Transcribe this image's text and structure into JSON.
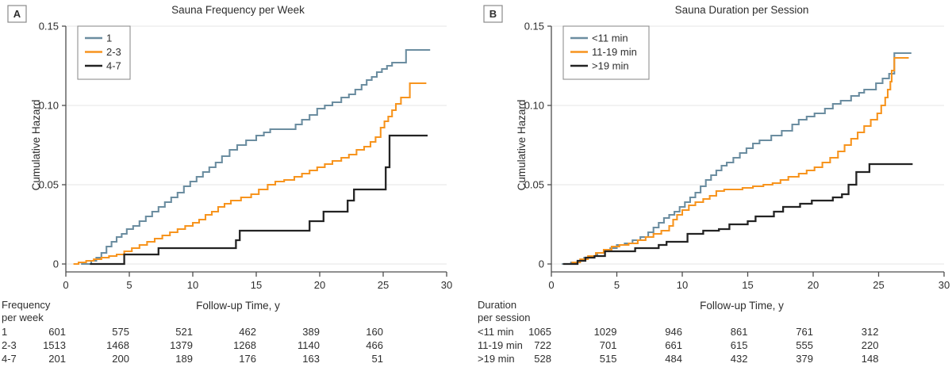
{
  "colors": {
    "blue": "#6b8da0",
    "orange": "#f7941e",
    "black": "#232323",
    "grid": "#e4e4e4",
    "axis": "#4d4d4d",
    "text": "#2e2e2e",
    "legend_border": "#909090",
    "panel_label_border": "#8a8a8a",
    "background": "#ffffff"
  },
  "chart_data": [
    {
      "type": "line",
      "subtype": "cumulative-hazard-step",
      "panel_label": "A",
      "title": "Sauna Frequency per Week",
      "xlabel": "Follow-up Time, y",
      "ylabel": "Cumulative Hazard",
      "xlim": [
        0,
        30
      ],
      "ylim": [
        0,
        0.15
      ],
      "xticks": [
        "0",
        "5",
        "10",
        "15",
        "20",
        "25",
        "30"
      ],
      "ytick_values": [
        0,
        0.05,
        0.1,
        0.15
      ],
      "ytick_labels": [
        "0",
        "0.05",
        "0.10",
        "0.15"
      ],
      "grid": "horizontal",
      "legend_position": "top-left-inside",
      "series": [
        {
          "name": "1",
          "color_key": "blue",
          "x_start": 1.2,
          "x_end": 28.7,
          "points": [
            [
              2.0,
              0.002
            ],
            [
              2.4,
              0.004
            ],
            [
              2.8,
              0.007
            ],
            [
              3.2,
              0.011
            ],
            [
              3.6,
              0.014
            ],
            [
              4.0,
              0.017
            ],
            [
              4.4,
              0.019
            ],
            [
              4.8,
              0.022
            ],
            [
              5.3,
              0.024
            ],
            [
              5.8,
              0.027
            ],
            [
              6.3,
              0.03
            ],
            [
              6.8,
              0.033
            ],
            [
              7.3,
              0.036
            ],
            [
              7.8,
              0.039
            ],
            [
              8.3,
              0.042
            ],
            [
              8.8,
              0.045
            ],
            [
              9.3,
              0.049
            ],
            [
              9.8,
              0.052
            ],
            [
              10.3,
              0.055
            ],
            [
              10.8,
              0.058
            ],
            [
              11.3,
              0.061
            ],
            [
              11.8,
              0.064
            ],
            [
              12.3,
              0.068
            ],
            [
              12.9,
              0.072
            ],
            [
              13.5,
              0.075
            ],
            [
              14.2,
              0.078
            ],
            [
              15.0,
              0.081
            ],
            [
              15.6,
              0.083
            ],
            [
              16.1,
              0.085
            ],
            [
              18.1,
              0.088
            ],
            [
              18.6,
              0.091
            ],
            [
              19.2,
              0.094
            ],
            [
              19.8,
              0.098
            ],
            [
              20.4,
              0.1
            ],
            [
              21.0,
              0.102
            ],
            [
              21.7,
              0.105
            ],
            [
              22.3,
              0.107
            ],
            [
              22.8,
              0.11
            ],
            [
              23.3,
              0.113
            ],
            [
              23.7,
              0.116
            ],
            [
              24.1,
              0.118
            ],
            [
              24.5,
              0.121
            ],
            [
              24.9,
              0.123
            ],
            [
              25.3,
              0.125
            ],
            [
              25.7,
              0.127
            ],
            [
              26.8,
              0.135
            ]
          ]
        },
        {
          "name": "2-3",
          "color_key": "orange",
          "x_start": 0.6,
          "x_end": 28.4,
          "points": [
            [
              1.0,
              0.001
            ],
            [
              1.6,
              0.002
            ],
            [
              2.2,
              0.003
            ],
            [
              2.8,
              0.004
            ],
            [
              3.4,
              0.005
            ],
            [
              4.0,
              0.006
            ],
            [
              4.6,
              0.008
            ],
            [
              5.2,
              0.01
            ],
            [
              5.8,
              0.012
            ],
            [
              6.4,
              0.014
            ],
            [
              7.0,
              0.016
            ],
            [
              7.6,
              0.018
            ],
            [
              8.2,
              0.02
            ],
            [
              8.8,
              0.022
            ],
            [
              9.4,
              0.024
            ],
            [
              10.0,
              0.026
            ],
            [
              10.5,
              0.028
            ],
            [
              11.0,
              0.031
            ],
            [
              11.5,
              0.033
            ],
            [
              12.0,
              0.036
            ],
            [
              12.5,
              0.038
            ],
            [
              13.0,
              0.04
            ],
            [
              13.8,
              0.042
            ],
            [
              14.6,
              0.044
            ],
            [
              15.2,
              0.047
            ],
            [
              15.9,
              0.05
            ],
            [
              16.5,
              0.052
            ],
            [
              17.2,
              0.053
            ],
            [
              18.0,
              0.055
            ],
            [
              18.6,
              0.057
            ],
            [
              19.2,
              0.059
            ],
            [
              19.8,
              0.061
            ],
            [
              20.4,
              0.063
            ],
            [
              21.0,
              0.065
            ],
            [
              21.7,
              0.067
            ],
            [
              22.3,
              0.069
            ],
            [
              22.9,
              0.072
            ],
            [
              23.5,
              0.074
            ],
            [
              24.0,
              0.077
            ],
            [
              24.4,
              0.08
            ],
            [
              24.8,
              0.086
            ],
            [
              25.1,
              0.09
            ],
            [
              25.4,
              0.093
            ],
            [
              25.7,
              0.097
            ],
            [
              26.0,
              0.101
            ],
            [
              26.4,
              0.105
            ],
            [
              27.1,
              0.114
            ]
          ]
        },
        {
          "name": "4-7",
          "color_key": "black",
          "x_start": 1.9,
          "x_end": 28.5,
          "points": [
            [
              4.6,
              0.006
            ],
            [
              7.3,
              0.01
            ],
            [
              13.4,
              0.015
            ],
            [
              13.7,
              0.021
            ],
            [
              19.2,
              0.027
            ],
            [
              20.3,
              0.033
            ],
            [
              22.2,
              0.04
            ],
            [
              22.7,
              0.047
            ],
            [
              25.2,
              0.061
            ],
            [
              25.5,
              0.081
            ]
          ]
        }
      ],
      "risk_table": {
        "header": [
          "Frequency",
          "per week"
        ],
        "time_columns": [
          0,
          5,
          10,
          15,
          20,
          25
        ],
        "rows": [
          {
            "label": "1",
            "values": [
              "601",
              "575",
              "521",
              "462",
              "389",
              "160"
            ]
          },
          {
            "label": "2-3",
            "values": [
              "1513",
              "1468",
              "1379",
              "1268",
              "1140",
              "466"
            ]
          },
          {
            "label": "4-7",
            "values": [
              "201",
              "200",
              "189",
              "176",
              "163",
              "51"
            ]
          }
        ]
      }
    },
    {
      "type": "line",
      "subtype": "cumulative-hazard-step",
      "panel_label": "B",
      "title": "Sauna Duration per Session",
      "xlabel": "Follow-up Time, y",
      "ylabel": "Cumulative Hazard",
      "xlim": [
        0,
        30
      ],
      "ylim": [
        0,
        0.15
      ],
      "xticks": [
        "0",
        "5",
        "10",
        "15",
        "20",
        "25",
        "30"
      ],
      "ytick_values": [
        0,
        0.05,
        0.1,
        0.15
      ],
      "ytick_labels": [
        "0",
        "0.05",
        "0.10",
        "0.15"
      ],
      "grid": "horizontal",
      "legend_position": "top-left-inside",
      "series": [
        {
          "name": "<11 min",
          "color_key": "blue",
          "x_start": 0.8,
          "x_end": 27.5,
          "points": [
            [
              1.5,
              0.001
            ],
            [
              2.0,
              0.002
            ],
            [
              2.5,
              0.004
            ],
            [
              3.0,
              0.005
            ],
            [
              3.5,
              0.007
            ],
            [
              4.0,
              0.008
            ],
            [
              4.5,
              0.01
            ],
            [
              5.0,
              0.012
            ],
            [
              5.6,
              0.013
            ],
            [
              6.2,
              0.015
            ],
            [
              6.8,
              0.017
            ],
            [
              7.4,
              0.02
            ],
            [
              7.8,
              0.023
            ],
            [
              8.2,
              0.026
            ],
            [
              8.6,
              0.029
            ],
            [
              9.0,
              0.031
            ],
            [
              9.4,
              0.033
            ],
            [
              9.8,
              0.036
            ],
            [
              10.2,
              0.039
            ],
            [
              10.6,
              0.042
            ],
            [
              11.0,
              0.045
            ],
            [
              11.4,
              0.049
            ],
            [
              11.8,
              0.053
            ],
            [
              12.2,
              0.056
            ],
            [
              12.6,
              0.059
            ],
            [
              13.0,
              0.062
            ],
            [
              13.4,
              0.064
            ],
            [
              13.9,
              0.067
            ],
            [
              14.4,
              0.07
            ],
            [
              14.9,
              0.073
            ],
            [
              15.4,
              0.076
            ],
            [
              15.9,
              0.078
            ],
            [
              16.8,
              0.081
            ],
            [
              17.6,
              0.084
            ],
            [
              18.4,
              0.088
            ],
            [
              18.9,
              0.091
            ],
            [
              19.5,
              0.093
            ],
            [
              20.1,
              0.095
            ],
            [
              20.9,
              0.098
            ],
            [
              21.5,
              0.101
            ],
            [
              22.1,
              0.103
            ],
            [
              22.9,
              0.106
            ],
            [
              23.5,
              0.108
            ],
            [
              23.9,
              0.11
            ],
            [
              24.8,
              0.114
            ],
            [
              25.3,
              0.117
            ],
            [
              25.8,
              0.12
            ],
            [
              26.2,
              0.133
            ]
          ]
        },
        {
          "name": "11-19 min",
          "color_key": "orange",
          "x_start": 0.9,
          "x_end": 27.3,
          "points": [
            [
              1.6,
              0.001
            ],
            [
              2.2,
              0.003
            ],
            [
              2.8,
              0.005
            ],
            [
              3.4,
              0.007
            ],
            [
              4.0,
              0.009
            ],
            [
              4.6,
              0.011
            ],
            [
              5.2,
              0.012
            ],
            [
              5.9,
              0.013
            ],
            [
              6.6,
              0.015
            ],
            [
              7.2,
              0.017
            ],
            [
              7.8,
              0.019
            ],
            [
              8.4,
              0.021
            ],
            [
              9.0,
              0.024
            ],
            [
              9.3,
              0.028
            ],
            [
              9.6,
              0.031
            ],
            [
              10.0,
              0.034
            ],
            [
              10.5,
              0.037
            ],
            [
              11.0,
              0.039
            ],
            [
              11.6,
              0.041
            ],
            [
              12.1,
              0.043
            ],
            [
              12.6,
              0.046
            ],
            [
              13.2,
              0.047
            ],
            [
              14.6,
              0.048
            ],
            [
              15.4,
              0.049
            ],
            [
              16.2,
              0.05
            ],
            [
              16.9,
              0.051
            ],
            [
              17.5,
              0.053
            ],
            [
              18.1,
              0.055
            ],
            [
              18.9,
              0.057
            ],
            [
              19.5,
              0.059
            ],
            [
              20.1,
              0.061
            ],
            [
              20.7,
              0.064
            ],
            [
              21.3,
              0.067
            ],
            [
              21.9,
              0.071
            ],
            [
              22.4,
              0.075
            ],
            [
              22.9,
              0.079
            ],
            [
              23.4,
              0.083
            ],
            [
              23.9,
              0.087
            ],
            [
              24.4,
              0.091
            ],
            [
              24.9,
              0.095
            ],
            [
              25.2,
              0.1
            ],
            [
              25.5,
              0.105
            ],
            [
              25.7,
              0.11
            ],
            [
              25.9,
              0.115
            ],
            [
              26.0,
              0.122
            ],
            [
              26.2,
              0.13
            ]
          ]
        },
        {
          "name": ">19 min",
          "color_key": "black",
          "x_start": 0.9,
          "x_end": 27.6,
          "points": [
            [
              2.0,
              0.002
            ],
            [
              2.6,
              0.004
            ],
            [
              3.3,
              0.005
            ],
            [
              4.1,
              0.008
            ],
            [
              6.4,
              0.01
            ],
            [
              8.2,
              0.012
            ],
            [
              8.8,
              0.014
            ],
            [
              10.4,
              0.019
            ],
            [
              11.6,
              0.021
            ],
            [
              12.8,
              0.022
            ],
            [
              13.6,
              0.025
            ],
            [
              15.0,
              0.027
            ],
            [
              15.6,
              0.03
            ],
            [
              17.0,
              0.033
            ],
            [
              17.7,
              0.036
            ],
            [
              19.0,
              0.038
            ],
            [
              19.9,
              0.04
            ],
            [
              21.5,
              0.042
            ],
            [
              22.2,
              0.044
            ],
            [
              22.7,
              0.05
            ],
            [
              23.3,
              0.058
            ],
            [
              24.3,
              0.063
            ]
          ]
        }
      ],
      "risk_table": {
        "header": [
          "Duration",
          "per session"
        ],
        "time_columns": [
          0,
          5,
          10,
          15,
          20,
          25
        ],
        "rows": [
          {
            "label": "<11 min",
            "values": [
              "1065",
              "1029",
              "946",
              "861",
              "761",
              "312"
            ]
          },
          {
            "label": "11-19 min",
            "values": [
              "722",
              "701",
              "661",
              "615",
              "555",
              "220"
            ]
          },
          {
            "label": ">19 min",
            "values": [
              "528",
              "515",
              "484",
              "432",
              "379",
              "148"
            ]
          }
        ]
      }
    }
  ]
}
